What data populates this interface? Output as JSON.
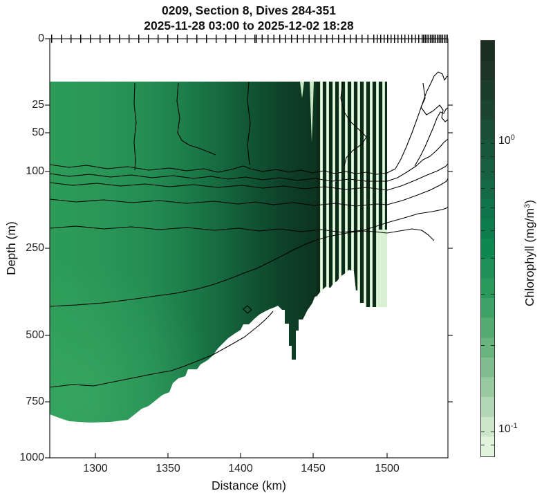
{
  "header": {
    "title_line1": "0209, Section 8, Dives 284-351",
    "title_line2": "2025-11-28 03:00 to 2025-12-02 18:28"
  },
  "axes": {
    "x": {
      "label": "Distance (km)",
      "tick_labels": [
        "1300",
        "1350",
        "1400",
        "1450",
        "1500"
      ],
      "range_km": [
        1269,
        1542
      ]
    },
    "y": {
      "label": "Depth (m)",
      "tick_labels": [
        "0",
        "25",
        "50",
        "100",
        "250",
        "500",
        "750",
        "1000"
      ],
      "range_m": [
        0,
        1000
      ],
      "scale": "sqrt"
    }
  },
  "colorbar": {
    "label_prefix": "Chlorophyll (mg/m",
    "label_sup": "3",
    "label_suffix": ")",
    "tick1_base": "10",
    "tick1_exp": "0",
    "tick2_base": "10",
    "tick2_exp": "-1",
    "scale": "log",
    "range_mg_m3": [
      0.082,
      2.27
    ],
    "major_ticks": [
      1,
      0.1
    ],
    "minor_ticks": [
      2,
      0.9,
      0.8,
      0.7,
      0.6,
      0.5,
      0.4,
      0.3,
      0.2,
      0.09
    ],
    "colors": [
      "#1B2D20",
      "#1C3526",
      "#1C3D2B",
      "#1B4530",
      "#1A4E35",
      "#18573A",
      "#166040",
      "#136A45",
      "#10744A",
      "#0D7D4E",
      "#0F8751",
      "#1C9056",
      "#2B995C",
      "#3EA266",
      "#53AB71",
      "#69B47F",
      "#80BE8F",
      "#98C9A1",
      "#B1D7B4",
      "#CBE6C9",
      "#E2F4DD"
    ]
  },
  "plot_colors": {
    "fill_low": "#2D9C59",
    "fill_high": "#0B2917",
    "missing_stripe_light": "#EFF9EB",
    "missing_stripe_dark": "#0E2B1A",
    "contour": "#000000",
    "axes": "#1A1A1A"
  },
  "chart_data": {
    "type": "heatmap",
    "subtype": "filled-contour ocean section (distance vs depth) with overlaid black contour lines",
    "title": "0209, Section 8, Dives 284-351",
    "subtitle": "2025-11-28 03:00 to 2025-12-02 18:28",
    "xlabel": "Distance (km)",
    "ylabel": "Depth (m)",
    "xlim": [
      1269,
      1542
    ],
    "x_ticks": [
      1300,
      1350,
      1400,
      1450,
      1500
    ],
    "ylim": [
      0,
      1000
    ],
    "y_ticks": [
      0,
      25,
      50,
      100,
      250,
      500,
      750,
      1000
    ],
    "y_scale": "square-root of depth, 0 m at top, increasing downward",
    "color_variable": "Chlorophyll (mg/m3)",
    "color_scale": "log10",
    "color_range_mg_m3_est": [
      0.08,
      2.3
    ],
    "colorbar_ticks": [
      "10^0",
      "10^-1"
    ],
    "colormap": "pale green (low) through emerald to near-black green (high), ~20 discrete filled-contour levels",
    "grid": false,
    "legend": false,
    "overlay": "unlabeled black contour lines: bundle near 100-150 m depth spanning the section, fanning upward/shoaling east of ~1500 km; two deep contours near 250-350 m and 450-600 m rising eastward; short vertical contours near 1328, 1358, 1407 and 1470 km in the upper 150 m",
    "top_axis_marks": "one tick per dive along the top axis (dives 284-351, 68 dives), spacing decreases (denser) toward the right/east",
    "sampled_field_estimate": {
      "distance_km": [
        1270,
        1300,
        1350,
        1400,
        1430,
        1460,
        1490
      ],
      "depth_m": [
        25,
        100,
        250,
        500,
        750
      ],
      "chlorophyll_mg_m3": [
        [
          0.4,
          0.38,
          0.35,
          0.32,
          0.34
        ],
        [
          0.55,
          0.5,
          0.4,
          0.34,
          0.36
        ],
        [
          1.0,
          0.85,
          0.55,
          0.42,
          null
        ],
        [
          1.9,
          1.6,
          1.0,
          0.55,
          null
        ],
        [
          2.2,
          2.0,
          1.4,
          null,
          null
        ],
        [
          2.2,
          1.9,
          0.09,
          null,
          null
        ],
        [
          null,
          null,
          null,
          null,
          null
        ]
      ]
    },
    "data_gaps": "White = no data. Vertical light/dark stripes near 1450-1500 km are alternating dives with missing chlorophyll (rendered at the colormap minimum). Data bottom shoals stepwise from ~830 m at 1270 km to ~400 m near 1460 km. East of ~1500 km only contour lines, no color fill. No data shallower than ~10 m."
  }
}
